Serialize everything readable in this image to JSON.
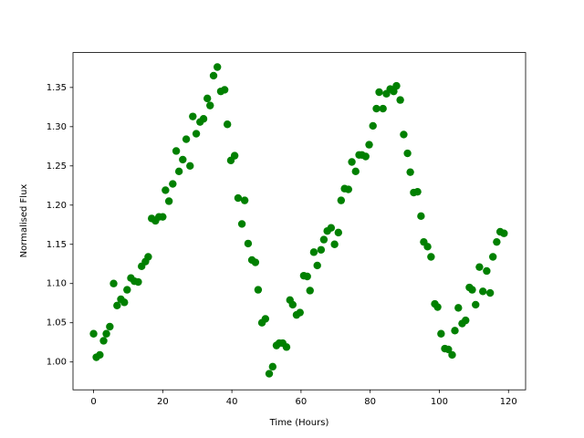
{
  "chart_data": {
    "type": "scatter",
    "x_label": "Time (Hours)",
    "y_label": "Normalised Flux",
    "color": "#008000",
    "x": [
      0,
      0.8,
      1.8,
      2.9,
      3.7,
      4.7,
      5.8,
      6.8,
      7.9,
      8.9,
      9.7,
      10.8,
      11.8,
      12.9,
      13.9,
      15,
      15.8,
      16.8,
      17.9,
      18.9,
      20,
      20.8,
      21.8,
      22.9,
      23.9,
      24.7,
      25.8,
      26.8,
      27.9,
      28.7,
      29.7,
      30.8,
      31.8,
      32.9,
      33.7,
      34.7,
      35.8,
      36.8,
      37.9,
      38.7,
      39.7,
      40.8,
      41.8,
      42.9,
      43.7,
      44.7,
      45.8,
      46.8,
      47.6,
      48.7,
      49.7,
      50.8,
      51.8,
      52.9,
      53.7,
      54.7,
      55.8,
      56.8,
      57.6,
      58.7,
      59.7,
      60.8,
      61.8,
      62.6,
      63.7,
      64.7,
      65.8,
      66.6,
      67.6,
      68.7,
      69.7,
      70.8,
      71.6,
      72.6,
      73.7,
      74.7,
      75.8,
      76.8,
      77.6,
      78.7,
      79.7,
      80.8,
      81.8,
      82.6,
      83.7,
      84.7,
      85.8,
      86.8,
      87.6,
      88.7,
      89.7,
      90.8,
      91.6,
      92.6,
      93.7,
      94.7,
      95.5,
      96.6,
      97.6,
      98.7,
      99.5,
      100.5,
      101.6,
      102.6,
      103.7,
      104.5,
      105.5,
      106.6,
      107.6,
      108.7,
      109.5,
      110.5,
      111.6,
      112.6,
      113.7,
      114.7,
      115.5,
      116.6,
      117.6,
      118.7
    ],
    "values": [
      1.036,
      1.006,
      1.009,
      1.027,
      1.036,
      1.045,
      1.1,
      1.072,
      1.08,
      1.076,
      1.092,
      1.107,
      1.103,
      1.102,
      1.122,
      1.128,
      1.134,
      1.183,
      1.18,
      1.185,
      1.185,
      1.219,
      1.205,
      1.227,
      1.269,
      1.243,
      1.258,
      1.284,
      1.25,
      1.313,
      1.291,
      1.306,
      1.31,
      1.336,
      1.327,
      1.365,
      1.376,
      1.345,
      1.347,
      1.303,
      1.257,
      1.263,
      1.209,
      1.176,
      1.206,
      1.151,
      1.13,
      1.127,
      1.092,
      1.05,
      1.055,
      0.985,
      0.994,
      1.021,
      1.024,
      1.024,
      1.019,
      1.079,
      1.073,
      1.06,
      1.063,
      1.11,
      1.109,
      1.091,
      1.14,
      1.123,
      1.143,
      1.156,
      1.167,
      1.171,
      1.15,
      1.165,
      1.206,
      1.221,
      1.22,
      1.255,
      1.243,
      1.264,
      1.264,
      1.262,
      1.277,
      1.301,
      1.323,
      1.344,
      1.323,
      1.342,
      1.348,
      1.345,
      1.352,
      1.334,
      1.29,
      1.266,
      1.242,
      1.216,
      1.217,
      1.186,
      1.153,
      1.147,
      1.134,
      1.074,
      1.07,
      1.036,
      1.017,
      1.016,
      1.009,
      1.04,
      1.069,
      1.049,
      1.053,
      1.095,
      1.092,
      1.073,
      1.121,
      1.09,
      1.116,
      1.088,
      1.134,
      1.153,
      1.166,
      1.164
    ],
    "xlim": [
      -5.95,
      124.95
    ],
    "xticks": [
      0,
      20,
      40,
      60,
      80,
      100,
      120
    ],
    "ylim": [
      0.9645,
      1.3945
    ],
    "yticks": [
      {
        "value": 1.0,
        "label": "1.00"
      },
      1.05,
      {
        "value": 1.1,
        "label": "1.10"
      },
      1.15,
      {
        "value": 1.2,
        "label": "1.20"
      },
      1.25,
      {
        "value": 1.3,
        "label": "1.30"
      },
      1.35
    ]
  }
}
